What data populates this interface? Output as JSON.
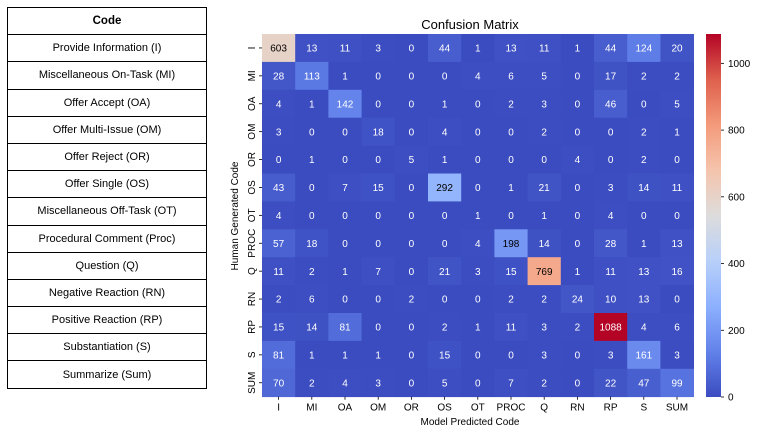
{
  "code_table": {
    "header": "Code",
    "rows": [
      "Provide Information (I)",
      "Miscellaneous On-Task (MI)",
      "Offer Accept (OA)",
      "Offer Multi-Issue (OM)",
      "Offer Reject (OR)",
      "Offer Single (OS)",
      "Miscellaneous Off-Task (OT)",
      "Procedural Comment (Proc)",
      "Question (Q)",
      "Negative Reaction (RN)",
      "Positive Reaction (RP)",
      "Substantiation (S)",
      "Summarize (Sum)"
    ]
  },
  "chart_data": {
    "type": "heatmap",
    "title": "Confusion Matrix",
    "xlabel": "Model Predicted Code",
    "ylabel": "Human Generated Code",
    "categories": [
      "I",
      "MI",
      "OA",
      "OM",
      "OR",
      "OS",
      "OT",
      "PROC",
      "Q",
      "RN",
      "RP",
      "S",
      "SUM"
    ],
    "matrix": [
      [
        603,
        13,
        11,
        3,
        0,
        44,
        1,
        13,
        11,
        1,
        44,
        124,
        20
      ],
      [
        28,
        113,
        1,
        0,
        0,
        0,
        4,
        6,
        5,
        0,
        17,
        2,
        2
      ],
      [
        4,
        1,
        142,
        0,
        0,
        1,
        0,
        2,
        3,
        0,
        46,
        0,
        5
      ],
      [
        3,
        0,
        0,
        18,
        0,
        4,
        0,
        0,
        2,
        0,
        0,
        2,
        1
      ],
      [
        0,
        1,
        0,
        0,
        5,
        1,
        0,
        0,
        0,
        4,
        0,
        2,
        0
      ],
      [
        43,
        0,
        7,
        15,
        0,
        292,
        0,
        1,
        21,
        0,
        3,
        14,
        11
      ],
      [
        4,
        0,
        0,
        0,
        0,
        0,
        1,
        0,
        1,
        0,
        4,
        0,
        0
      ],
      [
        57,
        18,
        0,
        0,
        0,
        0,
        4,
        198,
        14,
        0,
        28,
        1,
        13
      ],
      [
        11,
        2,
        1,
        7,
        0,
        21,
        3,
        15,
        769,
        1,
        11,
        13,
        16
      ],
      [
        2,
        6,
        0,
        0,
        2,
        0,
        0,
        2,
        2,
        24,
        10,
        13,
        0
      ],
      [
        15,
        14,
        81,
        0,
        0,
        2,
        1,
        11,
        3,
        2,
        1088,
        4,
        6
      ],
      [
        81,
        1,
        1,
        1,
        0,
        15,
        0,
        0,
        3,
        0,
        3,
        161,
        3
      ],
      [
        70,
        2,
        4,
        3,
        0,
        5,
        0,
        7,
        2,
        0,
        22,
        47,
        99
      ]
    ],
    "colorbar": {
      "min": 0,
      "max": 1088,
      "ticks": [
        0,
        200,
        400,
        600,
        800,
        1000
      ]
    },
    "colormap": [
      "#3b4cc0",
      "#6282ea",
      "#8db0fe",
      "#b8d0f9",
      "#dddcdc",
      "#f5c4ac",
      "#f49a7b",
      "#de604d",
      "#b40426"
    ]
  }
}
